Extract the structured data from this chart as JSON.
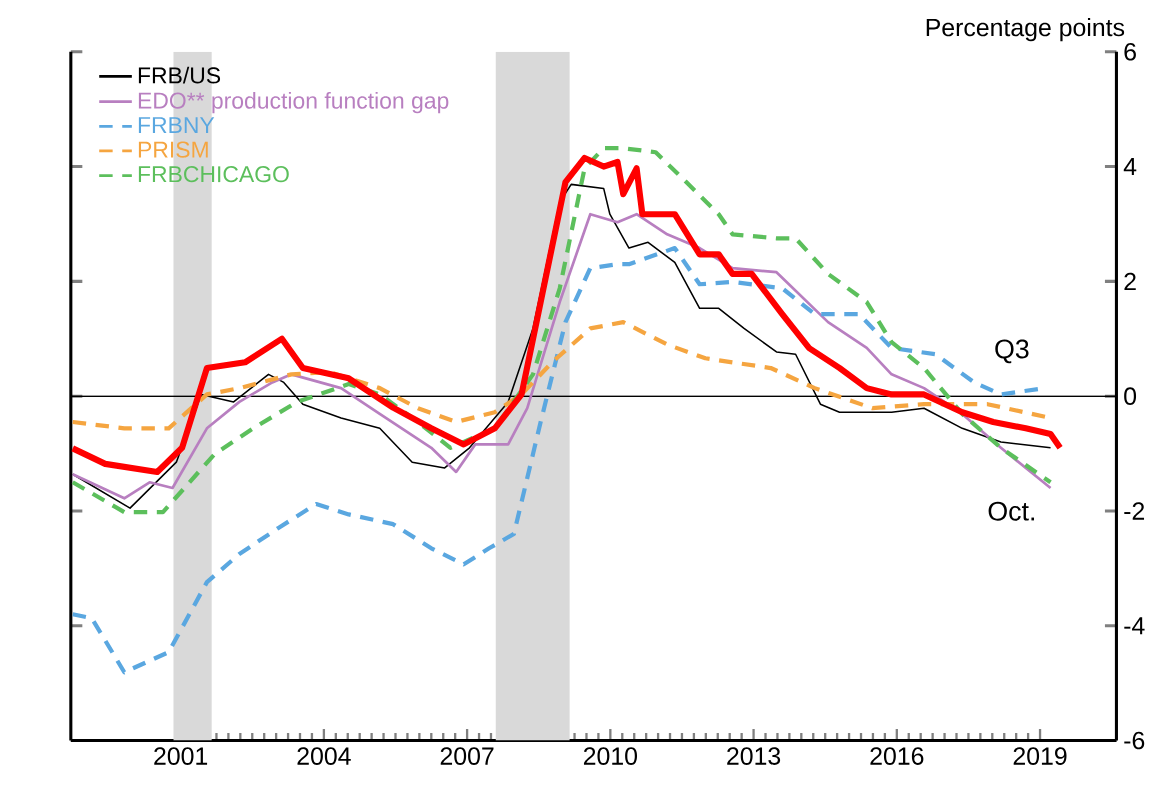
{
  "chart_data": {
    "type": "line",
    "ylabel": "Percentage points",
    "xlim": [
      1998.7,
      2020.6
    ],
    "ylim": [
      -6,
      6
    ],
    "xticks": [
      2001,
      2004,
      2007,
      2010,
      2013,
      2016,
      2019
    ],
    "yticks": [
      -6,
      -4,
      -2,
      0,
      2,
      4,
      6
    ],
    "legend": "top left",
    "tick_labels": "xy2",
    "ref_lines": [
      {
        "axis": "y",
        "value": 0,
        "color": "#000000"
      }
    ],
    "bands": [
      {
        "axis": "x",
        "from": 2000.85,
        "to": 2001.65,
        "color": "#d9d9d9"
      },
      {
        "axis": "x",
        "from": 2007.6,
        "to": 2009.15,
        "color": "#d9d9d9"
      }
    ],
    "annotations": [
      "Q3",
      "Oct."
    ],
    "series": [
      {
        "name": "FRB/US",
        "color": "#000000",
        "line_style": "solid",
        "x": [
          1998.74,
          1999.94,
          2000.91,
          2001.43,
          2002.11,
          2002.84,
          2003.16,
          2003.56,
          2004.36,
          2005.17,
          2005.85,
          2006.53,
          2007.05,
          2007.86,
          2008.38,
          2008.94,
          2009.18,
          2009.86,
          2009.99,
          2010.39,
          2010.79,
          2011.35,
          2011.87,
          2012.27,
          2012.8,
          2013.48,
          2013.88,
          2014.4,
          2014.8,
          2015.89,
          2016.57,
          2017.37,
          2018.18,
          2019.22
        ],
        "values": [
          -1.36,
          -1.95,
          -1.15,
          0.03,
          -0.1,
          0.38,
          0.24,
          -0.14,
          -0.38,
          -0.56,
          -1.15,
          -1.25,
          -0.9,
          -0.1,
          1.18,
          3.38,
          3.69,
          3.62,
          3.17,
          2.58,
          2.68,
          2.33,
          1.53,
          1.53,
          1.18,
          0.77,
          0.73,
          -0.14,
          -0.28,
          -0.28,
          -0.21,
          -0.56,
          -0.8,
          -0.9
        ]
      },
      {
        "name": "EDO** production function gap",
        "color": "#b87fc0",
        "line_style": "solid",
        "x": [
          1998.74,
          1999.82,
          2000.35,
          2000.83,
          2001.55,
          2002.23,
          2002.92,
          2003.32,
          2004.36,
          2005.17,
          2006.25,
          2006.77,
          2007.17,
          2007.86,
          2008.26,
          2008.94,
          2009.58,
          2010.15,
          2010.55,
          2011.19,
          2011.87,
          2012.56,
          2013.48,
          2014.56,
          2015.37,
          2015.89,
          2016.57,
          2017.37,
          2018.18,
          2019.22
        ],
        "values": [
          -1.36,
          -1.78,
          -1.5,
          -1.6,
          -0.56,
          -0.1,
          0.24,
          0.38,
          0.14,
          -0.31,
          -0.9,
          -1.32,
          -0.84,
          -0.84,
          -0.21,
          1.64,
          3.17,
          3.03,
          3.17,
          2.82,
          2.58,
          2.23,
          2.16,
          1.29,
          0.84,
          0.38,
          0.14,
          -0.31,
          -0.9,
          -1.6
        ]
      },
      {
        "name": "FRBNY",
        "color": "#5aa7e0",
        "line_style": "dashed",
        "x": [
          1998.74,
          1999.14,
          1999.82,
          2000.75,
          2001.55,
          2002.23,
          2003.04,
          2003.84,
          2004.52,
          2005.45,
          2006.25,
          2006.93,
          2007.46,
          2007.98,
          2008.54,
          2009.06,
          2009.58,
          2010.15,
          2010.39,
          2011.35,
          2011.87,
          2012.56,
          2013.6,
          2014.28,
          2015.21,
          2015.89,
          2016.81,
          2017.62,
          2018.18,
          2019.1
        ],
        "values": [
          -3.8,
          -3.87,
          -4.81,
          -4.46,
          -3.24,
          -2.75,
          -2.3,
          -1.88,
          -2.06,
          -2.23,
          -2.65,
          -2.93,
          -2.65,
          -2.4,
          -0.45,
          1.29,
          2.23,
          2.3,
          2.3,
          2.58,
          1.95,
          1.99,
          1.88,
          1.43,
          1.43,
          0.84,
          0.73,
          0.24,
          0.03,
          0.14
        ]
      },
      {
        "name": "PRISM",
        "color": "#f5a540",
        "line_style": "dashed",
        "x": [
          1998.74,
          1999.82,
          2000.75,
          2001.55,
          2002.23,
          2003.32,
          2004.12,
          2005.17,
          2005.97,
          2006.77,
          2007.58,
          2008.14,
          2008.78,
          2009.58,
          2010.27,
          2011.19,
          2011.99,
          2013.36,
          2014.28,
          2015.49,
          2016.57,
          2017.9,
          2019.22
        ],
        "values": [
          -0.45,
          -0.56,
          -0.56,
          0.03,
          0.14,
          0.38,
          0.42,
          0.14,
          -0.21,
          -0.45,
          -0.28,
          0.03,
          0.59,
          1.18,
          1.29,
          0.9,
          0.66,
          0.49,
          0.14,
          -0.21,
          -0.14,
          -0.14,
          -0.38
        ]
      },
      {
        "name": "FRBCHICAGO",
        "color": "#5cbf5c",
        "line_style": "dashed",
        "x": [
          1998.74,
          1999.82,
          2000.63,
          2001.71,
          2002.52,
          2003.44,
          2004.52,
          2005.17,
          2005.97,
          2006.65,
          2007.58,
          2008.38,
          2008.94,
          2009.46,
          2009.86,
          2010.27,
          2010.95,
          2011.59,
          2012.27,
          2012.56,
          2013.48,
          2013.88,
          2014.56,
          2015.37,
          2015.89,
          2016.57,
          2017.37,
          2018.18,
          2019.22
        ],
        "values": [
          -1.5,
          -2.02,
          -2.02,
          -1.01,
          -0.56,
          -0.1,
          0.21,
          0.03,
          -0.45,
          -0.9,
          -0.56,
          0.38,
          1.88,
          3.97,
          4.32,
          4.32,
          4.25,
          3.73,
          3.17,
          2.82,
          2.75,
          2.75,
          2.13,
          1.64,
          0.94,
          0.49,
          -0.31,
          -0.9,
          -1.5
        ]
      },
      {
        "color": "#ff0000",
        "line_style": "solid",
        "x": [
          1998.74,
          1999.42,
          2000.51,
          2001.03,
          2001.55,
          2002.35,
          2003.12,
          2003.56,
          2004.52,
          2005.45,
          2006.25,
          2006.93,
          2007.58,
          2008.14,
          2008.54,
          2009.06,
          2009.46,
          2009.86,
          2010.15,
          2010.27,
          2010.55,
          2010.67,
          2011.35,
          2011.87,
          2012.27,
          2012.56,
          2012.96,
          2013.6,
          2014.16,
          2014.8,
          2015.37,
          2015.89,
          2016.57,
          2017.37,
          2018.02,
          2018.7,
          2019.22,
          2019.42
        ],
        "values": [
          -0.91,
          -1.18,
          -1.32,
          -0.9,
          0.49,
          0.59,
          1.0,
          0.49,
          0.31,
          -0.2,
          -0.56,
          -0.84,
          -0.56,
          0.03,
          1.64,
          3.73,
          4.15,
          4.0,
          4.08,
          3.52,
          3.97,
          3.17,
          3.17,
          2.47,
          2.47,
          2.13,
          2.13,
          1.43,
          0.84,
          0.49,
          0.14,
          0.03,
          0.03,
          -0.28,
          -0.45,
          -0.56,
          -0.66,
          -0.9
        ]
      }
    ]
  }
}
